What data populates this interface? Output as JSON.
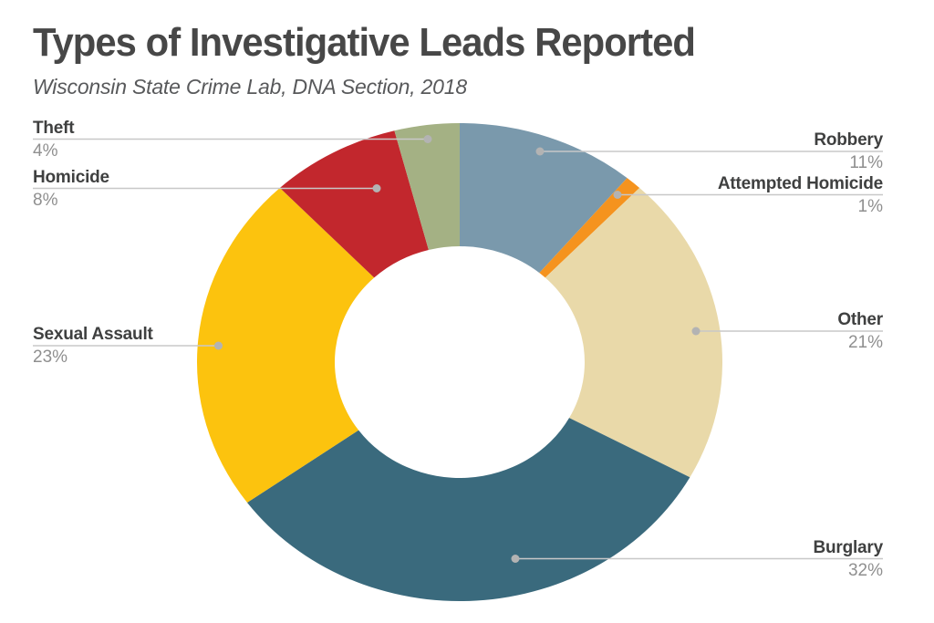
{
  "header": {
    "title": "Types of Investigative Leads Reported",
    "subtitle": "Wisconsin State Crime Lab, DNA Section, 2018"
  },
  "chart_data": {
    "type": "pie",
    "variant": "donut",
    "title": "Types of Investigative Leads Reported",
    "subtitle": "Wisconsin State Crime Lab, DNA Section, 2018",
    "unit": "percent",
    "total": 100,
    "rotation_deg_from_top": 0,
    "direction": "clockwise",
    "inner_radius_ratio": 0.48,
    "legend_position": "none",
    "label_style": "callouts-with-leader-lines",
    "background_color": "#ffffff",
    "leader_line_color": "#c8c8c8",
    "leader_dot_color": "#b3b3b3",
    "slices": [
      {
        "label": "Robbery",
        "value": 11,
        "pct_label": "11%",
        "color": "#7a99ac",
        "callout_side": "right"
      },
      {
        "label": "Attempted Homicide",
        "value": 1,
        "pct_label": "1%",
        "color": "#f5931e",
        "callout_side": "right"
      },
      {
        "label": "Other",
        "value": 21,
        "pct_label": "21%",
        "color": "#e9d9a9",
        "callout_side": "right"
      },
      {
        "label": "Burglary",
        "value": 32,
        "pct_label": "32%",
        "color": "#3a6a7d",
        "callout_side": "right"
      },
      {
        "label": "Sexual Assault",
        "value": 23,
        "pct_label": "23%",
        "color": "#fcc30e",
        "callout_side": "left"
      },
      {
        "label": "Homicide",
        "value": 8,
        "pct_label": "8%",
        "color": "#c2272d",
        "callout_side": "left"
      },
      {
        "label": "Theft",
        "value": 4,
        "pct_label": "4%",
        "color": "#a4b184",
        "callout_side": "left"
      }
    ]
  }
}
